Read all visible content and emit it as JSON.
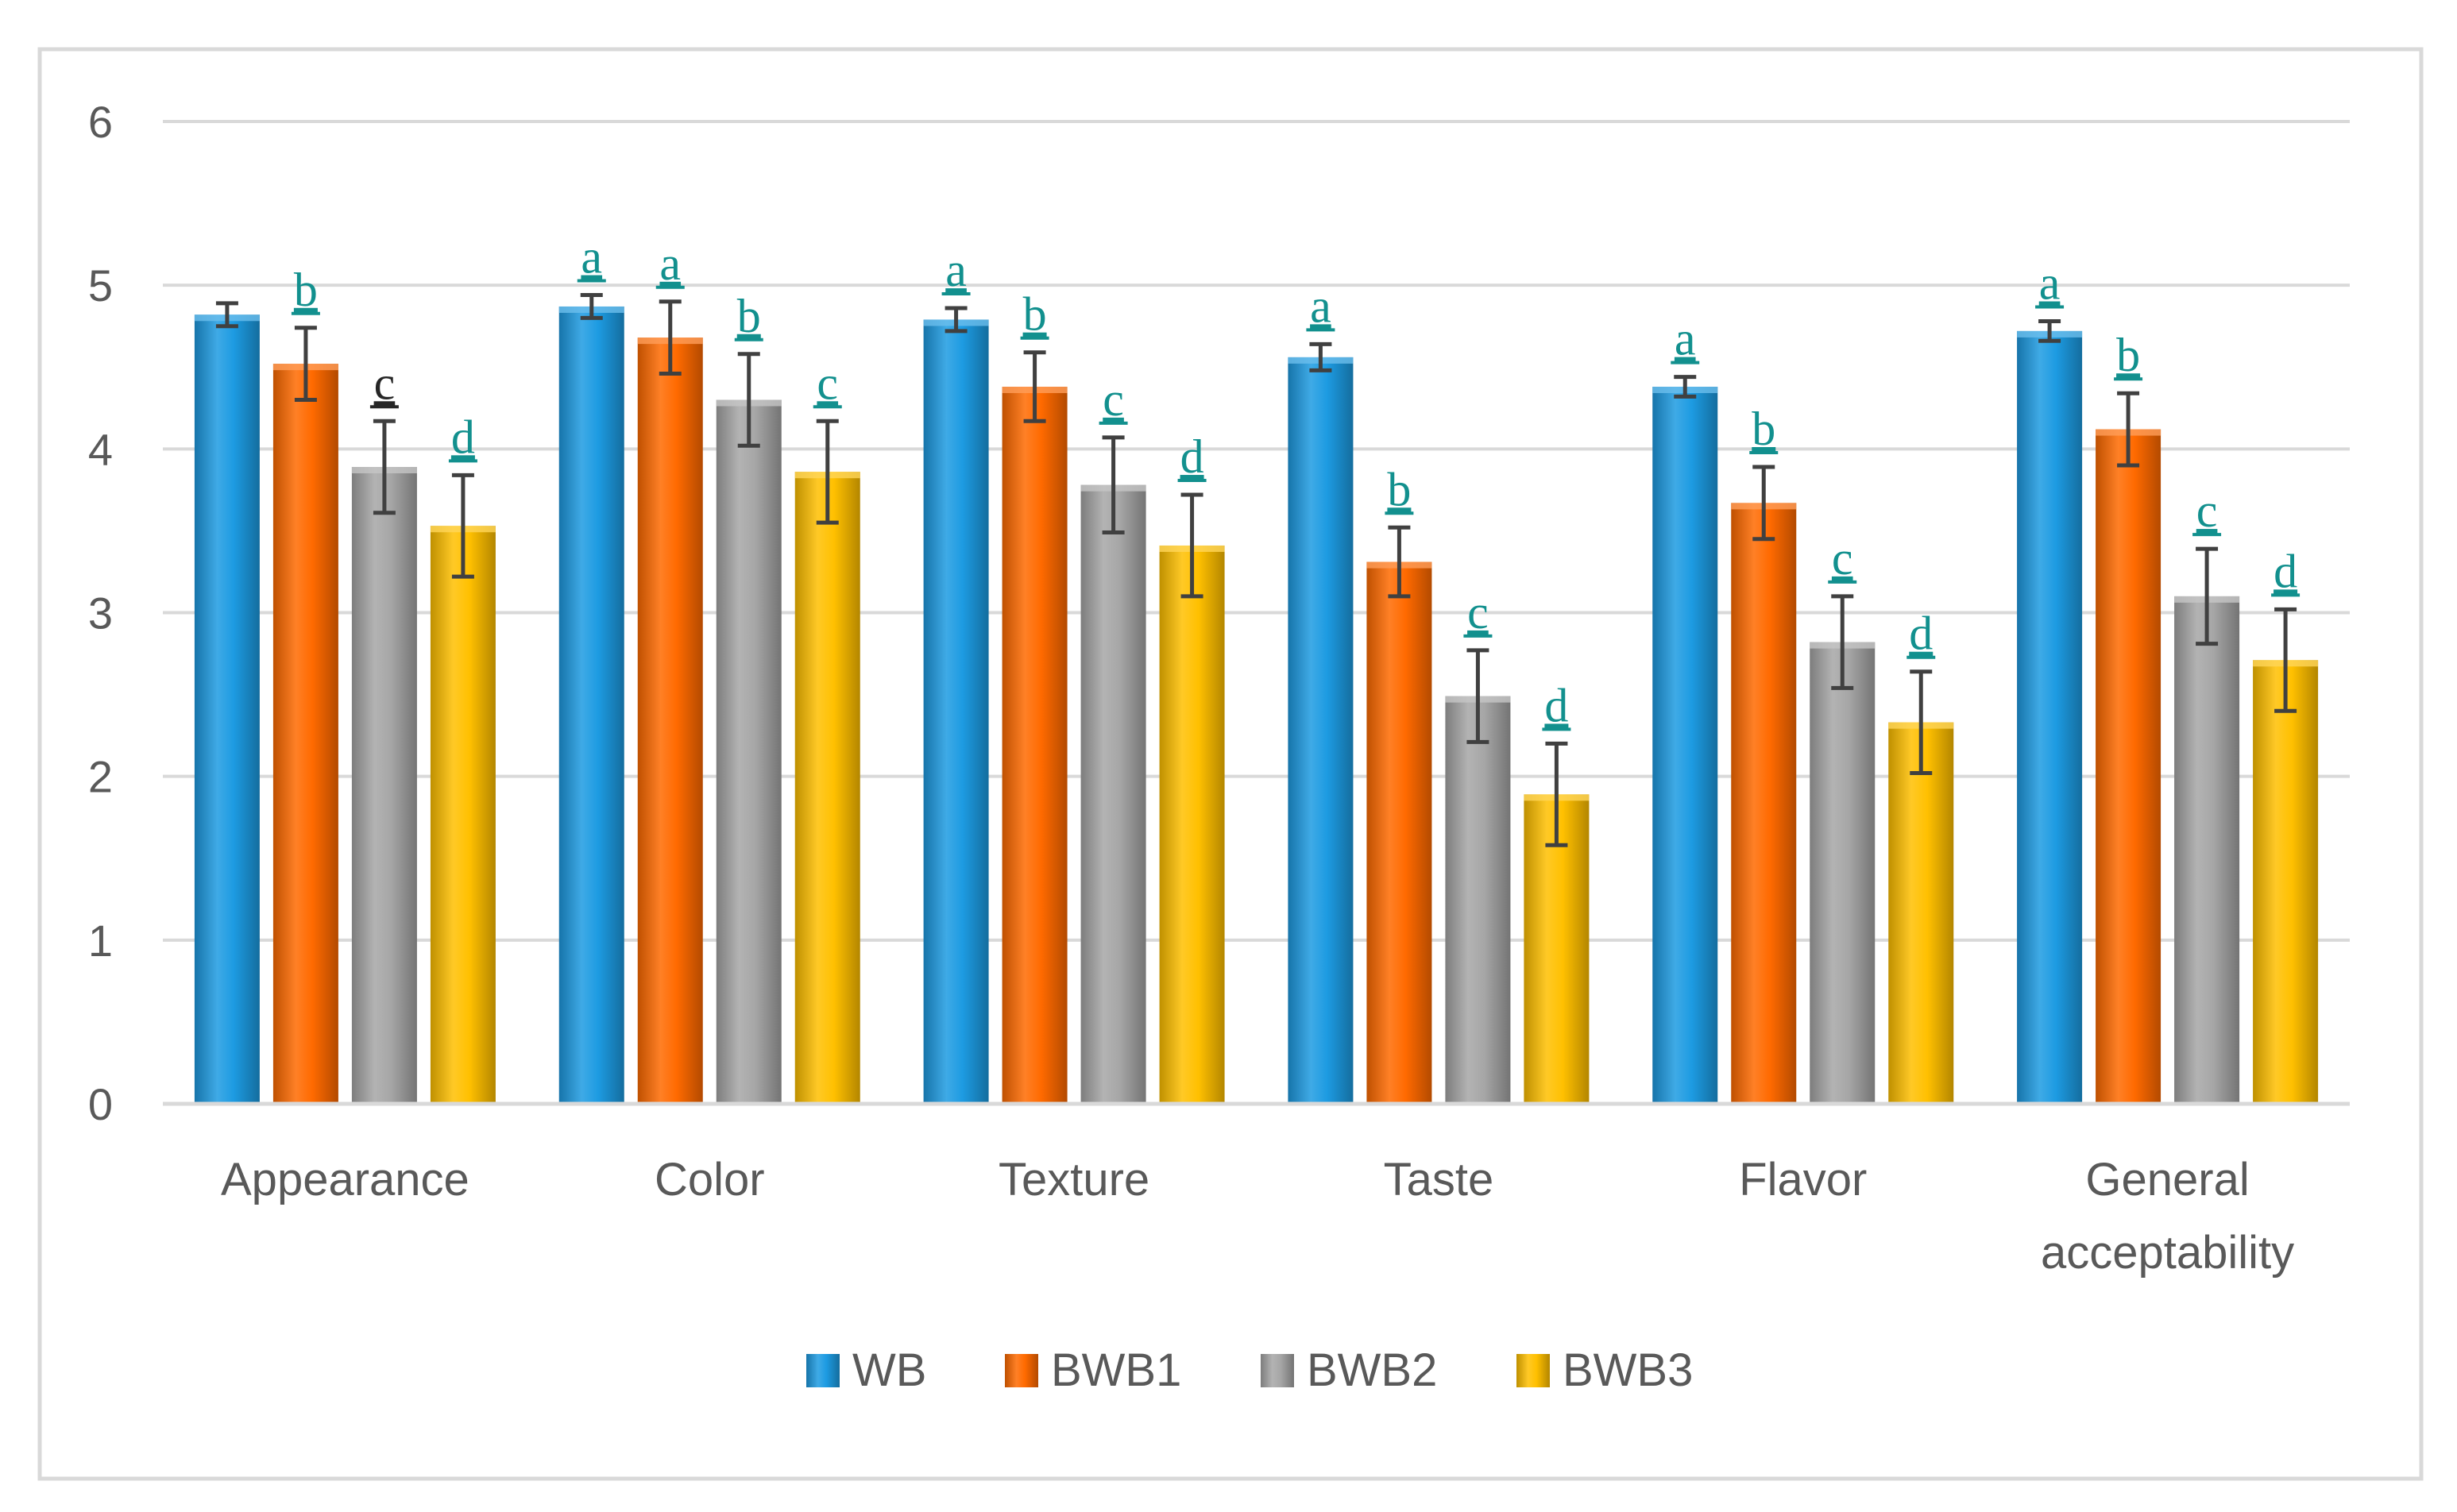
{
  "chart_data": {
    "type": "bar",
    "categories": [
      "Appearance",
      "Color",
      "Texture",
      "Taste",
      "Flavor",
      "General acceptability"
    ],
    "category_lines": [
      [
        "Appearance"
      ],
      [
        "Color"
      ],
      [
        "Texture"
      ],
      [
        "Taste"
      ],
      [
        "Flavor"
      ],
      [
        "General",
        "acceptability"
      ]
    ],
    "series": [
      {
        "name": "WB",
        "color": "#1d9be2",
        "values": [
          4.82,
          4.87,
          4.79,
          4.56,
          4.38,
          4.72
        ],
        "errors": [
          0.07,
          0.07,
          0.07,
          0.08,
          0.06,
          0.06
        ],
        "letters": [
          "",
          "a",
          "a",
          "a",
          "a",
          "a"
        ]
      },
      {
        "name": "BWB1",
        "color": "#ff6a00",
        "values": [
          4.52,
          4.68,
          4.38,
          3.31,
          3.67,
          4.12
        ],
        "errors": [
          0.22,
          0.22,
          0.21,
          0.21,
          0.22,
          0.22
        ],
        "letters": [
          "b",
          "a",
          "b",
          "b",
          "b",
          "b"
        ]
      },
      {
        "name": "BWB2",
        "color": "#a6a6a6",
        "values": [
          3.89,
          4.3,
          3.78,
          2.49,
          2.82,
          3.1
        ],
        "errors": [
          0.28,
          0.28,
          0.29,
          0.28,
          0.28,
          0.29
        ],
        "letters": [
          "c",
          "b",
          "c",
          "c",
          "c",
          "c"
        ]
      },
      {
        "name": "BWB3",
        "color": "#ffc000",
        "values": [
          3.53,
          3.86,
          3.41,
          1.89,
          2.33,
          2.71
        ],
        "errors": [
          0.31,
          0.31,
          0.31,
          0.31,
          0.31,
          0.31
        ],
        "letters": [
          "d",
          "c",
          "d",
          "d",
          "d",
          "d"
        ]
      }
    ],
    "title": "",
    "xlabel": "",
    "ylabel": "",
    "ylim": [
      0,
      6
    ],
    "yticks": [
      "0",
      "1",
      "2",
      "3",
      "4",
      "5",
      "6"
    ],
    "grid": true,
    "legend_position": "bottom"
  }
}
